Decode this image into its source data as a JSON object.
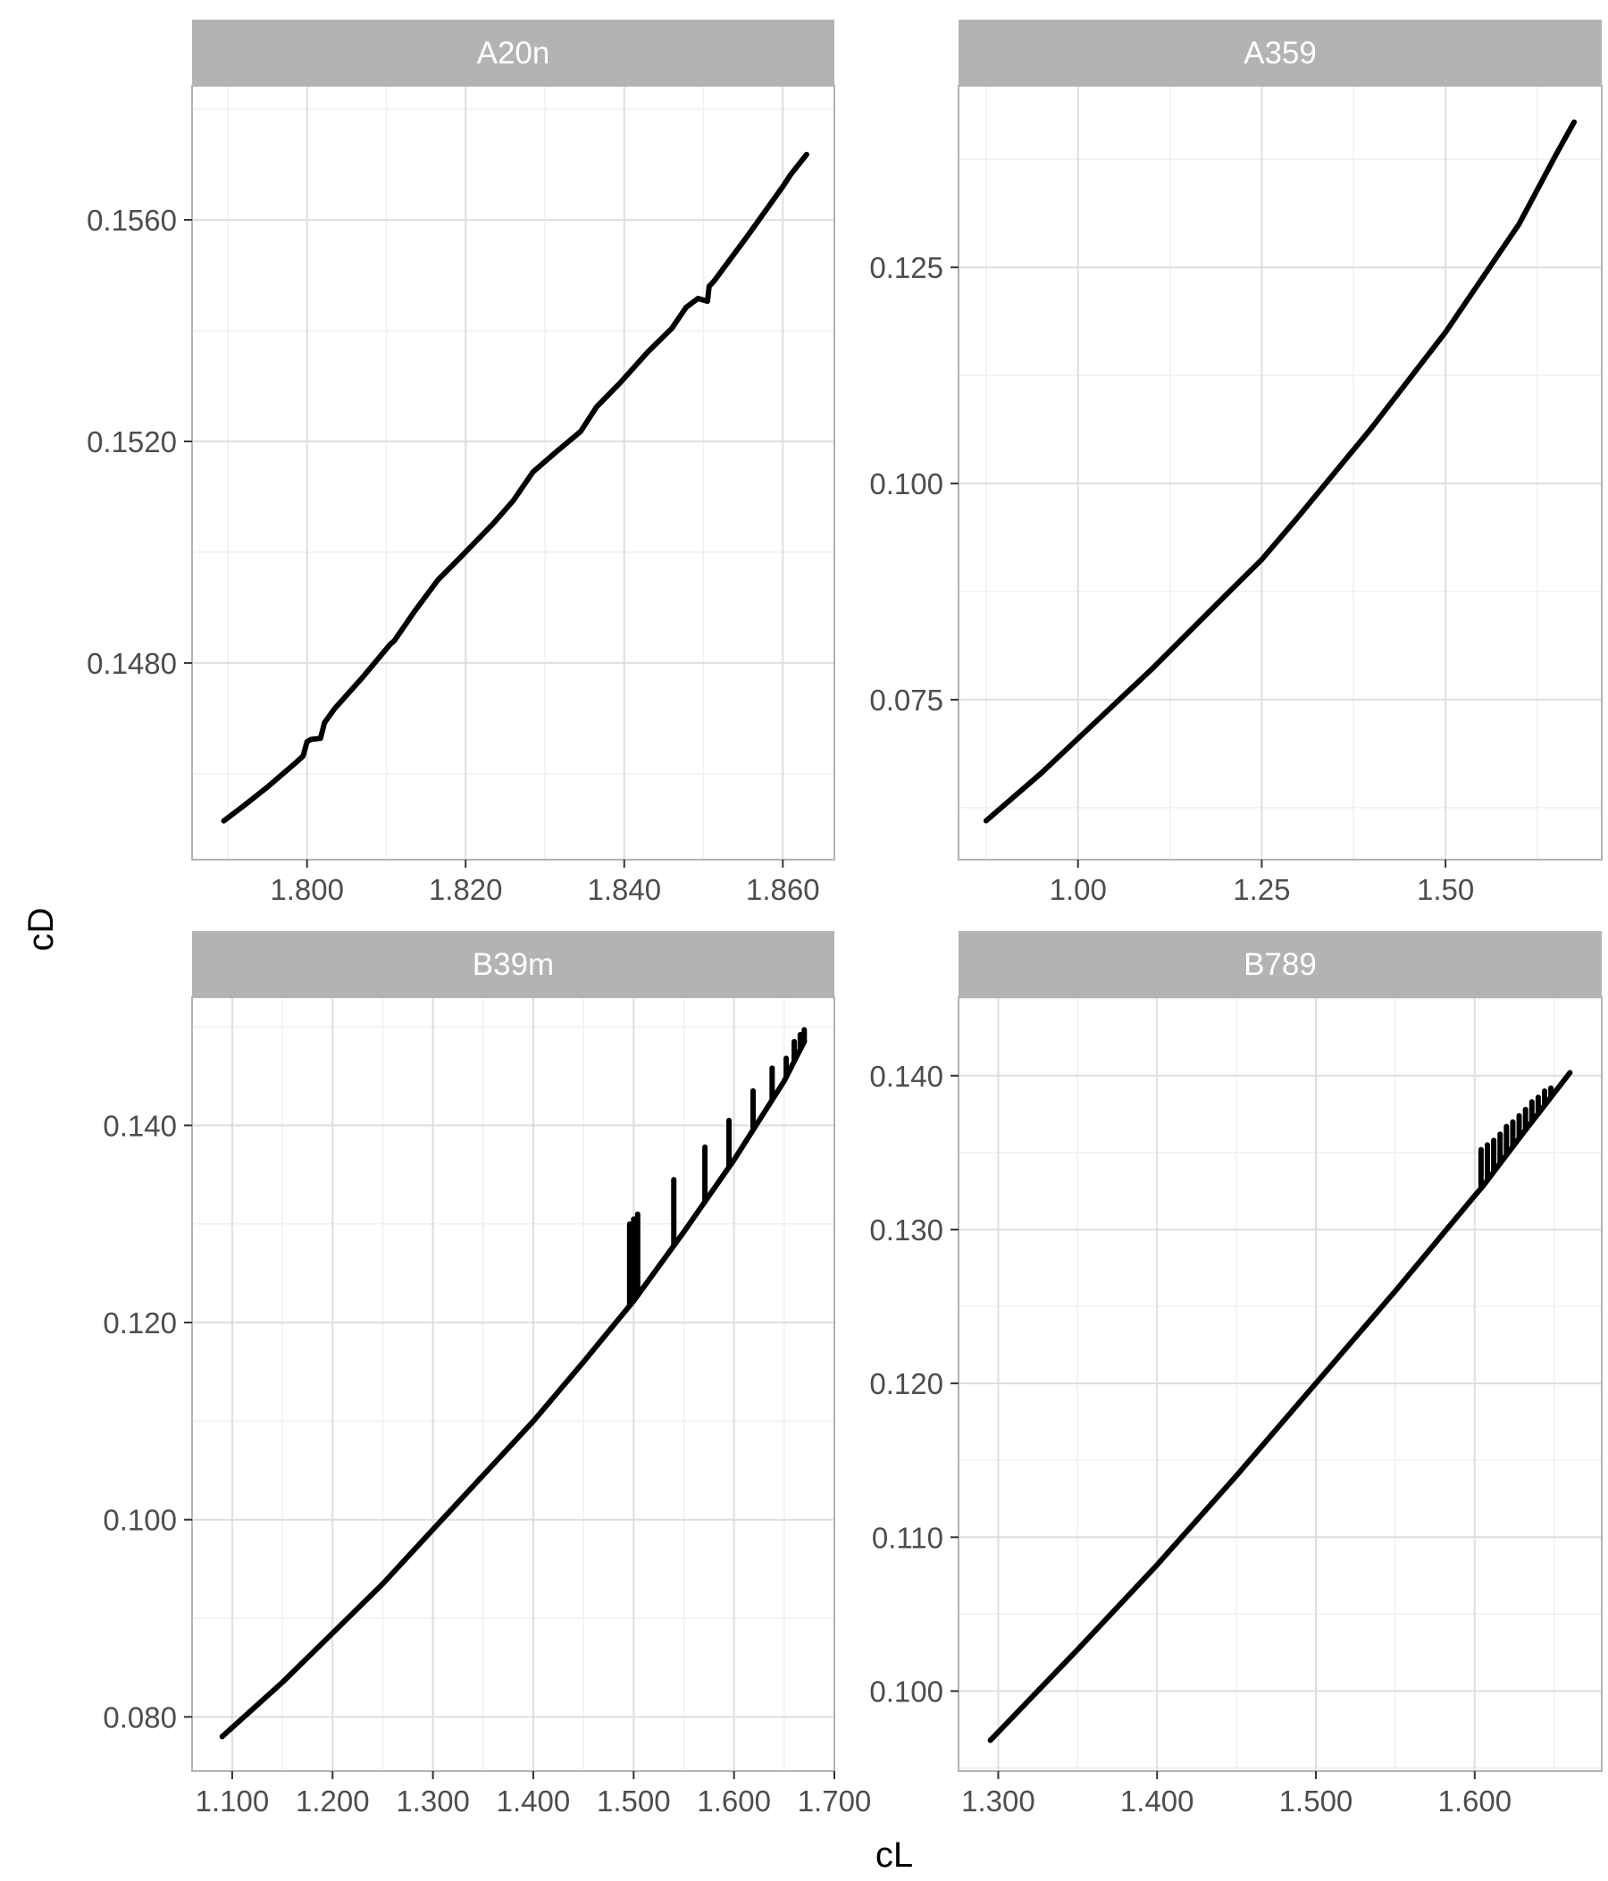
{
  "axis_titles": {
    "x": "cL",
    "y": "cD"
  },
  "colors": {
    "strip_background": "#b3b3b3",
    "strip_text": "#ffffff",
    "panel_border": "#b3b3b3",
    "grid_major": "#dedede",
    "grid_minor": "#efefef",
    "tick_label": "#4d4d4d",
    "line": "#000000"
  },
  "chart_data": [
    {
      "type": "line",
      "facet": "A20n",
      "xlabel": "cL",
      "ylabel": "cD",
      "grid": true,
      "xlim": [
        1.7855,
        1.8665
      ],
      "ylim": [
        0.14445,
        0.15842
      ],
      "x_ticks": [
        1.8,
        1.82,
        1.84,
        1.86
      ],
      "x_tick_labels": [
        "1.800",
        "1.820",
        "1.840",
        "1.860"
      ],
      "y_ticks": [
        0.148,
        0.152,
        0.156
      ],
      "y_tick_labels": [
        "0.1480",
        "0.1520",
        "0.1560"
      ],
      "series": [
        {
          "x": [
            1.7895,
            1.792,
            1.795,
            1.7985,
            1.7995,
            1.8,
            1.8005,
            1.8017,
            1.8022,
            1.8035,
            1.807,
            1.8105,
            1.811,
            1.8135,
            1.8165,
            1.8195,
            1.8235,
            1.826,
            1.8285,
            1.8315,
            1.8345,
            1.8365,
            1.8395,
            1.843,
            1.846,
            1.8478,
            1.8493,
            1.8505,
            1.8507,
            1.8513,
            1.8555,
            1.86,
            1.861,
            1.863
          ],
          "y": [
            0.14515,
            0.14542,
            0.14576,
            0.14619,
            0.14632,
            0.14658,
            0.14662,
            0.14664,
            0.14692,
            0.14718,
            0.14774,
            0.14834,
            0.1484,
            0.14892,
            0.1495,
            0.14993,
            0.15052,
            0.15093,
            0.15145,
            0.15182,
            0.15218,
            0.15262,
            0.15306,
            0.15362,
            0.15404,
            0.15442,
            0.15458,
            0.15453,
            0.1548,
            0.15489,
            0.1557,
            0.1566,
            0.15682,
            0.15718
          ]
        }
      ]
    },
    {
      "type": "line",
      "facet": "A359",
      "xlabel": "cL",
      "ylabel": "cD",
      "grid": true,
      "xlim": [
        0.8375,
        1.7125
      ],
      "ylim": [
        0.0565,
        0.146
      ],
      "x_ticks": [
        1.0,
        1.25,
        1.5
      ],
      "x_tick_labels": [
        "1.00",
        "1.25",
        "1.50"
      ],
      "y_ticks": [
        0.075,
        0.1,
        0.125
      ],
      "y_tick_labels": [
        "0.075",
        "0.100",
        "0.125"
      ],
      "series": [
        {
          "x": [
            0.875,
            0.95,
            1.0,
            1.1,
            1.2,
            1.25,
            1.3,
            1.4,
            1.5,
            1.6,
            1.65,
            1.675
          ],
          "y": [
            0.061,
            0.0665,
            0.0705,
            0.0785,
            0.087,
            0.0912,
            0.0962,
            0.1065,
            0.1175,
            0.13,
            0.138,
            0.1418
          ]
        }
      ]
    },
    {
      "type": "line",
      "facet": "B39m",
      "xlabel": "cL",
      "ylabel": "cD",
      "grid": true,
      "xlim": [
        1.06,
        1.7
      ],
      "ylim": [
        0.0745,
        0.153
      ],
      "x_ticks": [
        1.1,
        1.2,
        1.3,
        1.4,
        1.5,
        1.6,
        1.7
      ],
      "x_tick_labels": [
        "1.100",
        "1.200",
        "1.300",
        "1.400",
        "1.500",
        "1.600",
        "1.700"
      ],
      "y_ticks": [
        0.08,
        0.1,
        0.12,
        0.14
      ],
      "y_tick_labels": [
        "0.080",
        "0.100",
        "0.120",
        "0.140"
      ],
      "series": [
        {
          "x": [
            1.09,
            1.15,
            1.2,
            1.25,
            1.3,
            1.35,
            1.4,
            1.45,
            1.5,
            1.55,
            1.6,
            1.65,
            1.67
          ],
          "y": [
            0.078,
            0.0835,
            0.0885,
            0.0935,
            0.099,
            0.1045,
            0.11,
            0.116,
            0.1222,
            0.1292,
            0.1365,
            0.1445,
            0.1485
          ]
        }
      ],
      "spikes": [
        {
          "x": 1.496,
          "y_top": 0.13
        },
        {
          "x": 1.5,
          "y_top": 0.1305
        },
        {
          "x": 1.504,
          "y_top": 0.131
        },
        {
          "x": 1.54,
          "y_top": 0.1345
        },
        {
          "x": 1.571,
          "y_top": 0.1378
        },
        {
          "x": 1.595,
          "y_top": 0.1405
        },
        {
          "x": 1.619,
          "y_top": 0.1435
        },
        {
          "x": 1.638,
          "y_top": 0.1458
        },
        {
          "x": 1.652,
          "y_top": 0.1468
        },
        {
          "x": 1.66,
          "y_top": 0.1485
        },
        {
          "x": 1.666,
          "y_top": 0.1492
        },
        {
          "x": 1.67,
          "y_top": 0.1497
        }
      ]
    },
    {
      "type": "line",
      "facet": "B789",
      "xlabel": "cL",
      "ylabel": "cD",
      "grid": true,
      "xlim": [
        1.275,
        1.68
      ],
      "ylim": [
        0.0948,
        0.1451
      ],
      "x_ticks": [
        1.3,
        1.4,
        1.5,
        1.6
      ],
      "x_tick_labels": [
        "1.300",
        "1.400",
        "1.500",
        "1.600"
      ],
      "y_ticks": [
        0.1,
        0.11,
        0.12,
        0.13,
        0.14
      ],
      "y_tick_labels": [
        "0.100",
        "0.110",
        "0.120",
        "0.130",
        "0.140"
      ],
      "series": [
        {
          "x": [
            1.295,
            1.35,
            1.4,
            1.45,
            1.5,
            1.55,
            1.6,
            1.605,
            1.63,
            1.66
          ],
          "y": [
            0.0968,
            0.1027,
            0.1082,
            0.114,
            0.12,
            0.126,
            0.1322,
            0.1328,
            0.1362,
            0.1402
          ]
        }
      ],
      "spikes": [
        {
          "x": 1.604,
          "y_top": 0.1352
        },
        {
          "x": 1.608,
          "y_top": 0.1355
        },
        {
          "x": 1.612,
          "y_top": 0.1358
        },
        {
          "x": 1.616,
          "y_top": 0.1362
        },
        {
          "x": 1.62,
          "y_top": 0.1367
        },
        {
          "x": 1.624,
          "y_top": 0.137
        },
        {
          "x": 1.628,
          "y_top": 0.1374
        },
        {
          "x": 1.632,
          "y_top": 0.1378
        },
        {
          "x": 1.636,
          "y_top": 0.1383
        },
        {
          "x": 1.64,
          "y_top": 0.1386
        },
        {
          "x": 1.644,
          "y_top": 0.139
        },
        {
          "x": 1.648,
          "y_top": 0.1392
        }
      ]
    }
  ]
}
